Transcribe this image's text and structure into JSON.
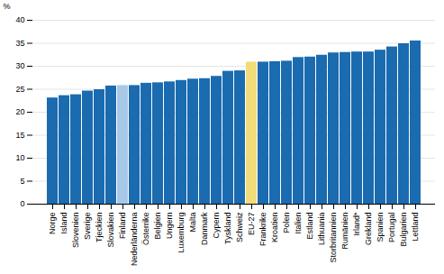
{
  "chart_data": {
    "type": "bar",
    "categories": [
      "Norge",
      "Island",
      "Slovenien",
      "Sverige",
      "Tjeckien",
      "Slovakien",
      "Finland",
      "Nederländerna",
      "Österrike",
      "Belgien",
      "Ungern",
      "Luxemburg",
      "Malta",
      "Danmark",
      "Cypern",
      "Tyskland",
      "Schweiz",
      "EU-27",
      "Frankrike",
      "Kroatien",
      "Polen",
      "Italien",
      "Estland",
      "Lithuania",
      "Storbritannien",
      "Rumänien",
      "Irland*",
      "Grekland",
      "Spanien",
      "Portugal",
      "Bulgarien",
      "Lettland"
    ],
    "values": [
      23.1,
      23.6,
      23.8,
      24.6,
      24.9,
      25.7,
      25.8,
      25.8,
      26.3,
      26.4,
      26.6,
      26.9,
      27.2,
      27.3,
      27.8,
      28.9,
      29.0,
      30.9,
      30.9,
      31.0,
      31.1,
      31.9,
      32.0,
      32.4,
      32.9,
      33.0,
      33.1,
      33.1,
      33.5,
      34.2,
      34.9,
      35.5
    ],
    "colors": [
      "#1B6BB0",
      "#1B6BB0",
      "#1B6BB0",
      "#1B6BB0",
      "#1B6BB0",
      "#1B6BB0",
      "#A8C8E8",
      "#1B6BB0",
      "#1B6BB0",
      "#1B6BB0",
      "#1B6BB0",
      "#1B6BB0",
      "#1B6BB0",
      "#1B6BB0",
      "#1B6BB0",
      "#1B6BB0",
      "#1B6BB0",
      "#F0DC78",
      "#1B6BB0",
      "#1B6BB0",
      "#1B6BB0",
      "#1B6BB0",
      "#1B6BB0",
      "#1B6BB0",
      "#1B6BB0",
      "#1B6BB0",
      "#1B6BB0",
      "#1B6BB0",
      "#1B6BB0",
      "#1B6BB0",
      "#1B6BB0",
      "#1B6BB0"
    ],
    "ylabel": "%",
    "ylim": [
      0,
      40
    ],
    "yticks": [
      0,
      5,
      10,
      15,
      20,
      25,
      30,
      35,
      40
    ],
    "grid": true
  }
}
